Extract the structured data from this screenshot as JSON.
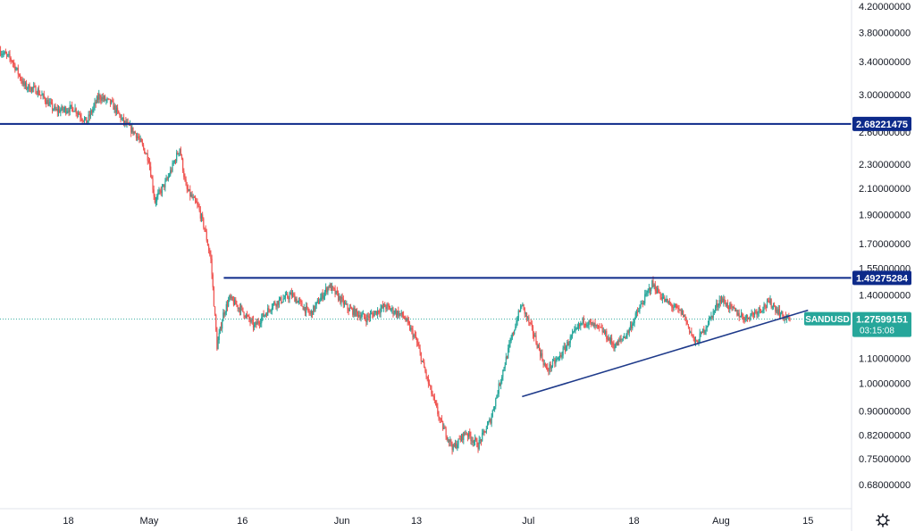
{
  "chart_data": {
    "type": "candlestick",
    "symbol": "SANDUSD",
    "y_scale": "log",
    "ylim": [
      0.62,
      4.3
    ],
    "x_range": [
      "2022-04-07",
      "2022-08-22"
    ],
    "y_ticks": [
      "4.20000000",
      "3.80000000",
      "3.40000000",
      "3.00000000",
      "2.60000000",
      "2.30000000",
      "2.10000000",
      "1.90000000",
      "1.70000000",
      "1.55000000",
      "1.40000000",
      "1.10000000",
      "1.00000000",
      "0.90000000",
      "0.82000000",
      "0.75000000",
      "0.68000000"
    ],
    "x_ticks": [
      {
        "label": "18",
        "date": "2022-04-18"
      },
      {
        "label": "May",
        "date": "2022-05-01"
      },
      {
        "label": "16",
        "date": "2022-05-16"
      },
      {
        "label": "Jun",
        "date": "2022-06-01"
      },
      {
        "label": "13",
        "date": "2022-06-13"
      },
      {
        "label": "Jul",
        "date": "2022-07-01"
      },
      {
        "label": "18",
        "date": "2022-07-18"
      },
      {
        "label": "Aug",
        "date": "2022-08-01"
      },
      {
        "label": "15",
        "date": "2022-08-15"
      }
    ],
    "price_path": [
      [
        "2022-04-07",
        3.55
      ],
      [
        "2022-04-09",
        3.42
      ],
      [
        "2022-04-11",
        3.1
      ],
      [
        "2022-04-13",
        3.05
      ],
      [
        "2022-04-16",
        2.82
      ],
      [
        "2022-04-19",
        2.85
      ],
      [
        "2022-04-21",
        2.7
      ],
      [
        "2022-04-23",
        2.98
      ],
      [
        "2022-04-25",
        2.9
      ],
      [
        "2022-04-27",
        2.7
      ],
      [
        "2022-04-29",
        2.58
      ],
      [
        "2022-05-01",
        2.35
      ],
      [
        "2022-05-02",
        2.0
      ],
      [
        "2022-05-04",
        2.17
      ],
      [
        "2022-05-06",
        2.45
      ],
      [
        "2022-05-07",
        2.1
      ],
      [
        "2022-05-09",
        1.95
      ],
      [
        "2022-05-10",
        1.8
      ],
      [
        "2022-05-11",
        1.6
      ],
      [
        "2022-05-12",
        1.15
      ],
      [
        "2022-05-13",
        1.3
      ],
      [
        "2022-05-14",
        1.38
      ],
      [
        "2022-05-16",
        1.32
      ],
      [
        "2022-05-18",
        1.24
      ],
      [
        "2022-05-21",
        1.35
      ],
      [
        "2022-05-24",
        1.4
      ],
      [
        "2022-05-27",
        1.3
      ],
      [
        "2022-05-30",
        1.45
      ],
      [
        "2022-06-02",
        1.33
      ],
      [
        "2022-06-05",
        1.28
      ],
      [
        "2022-06-08",
        1.34
      ],
      [
        "2022-06-11",
        1.29
      ],
      [
        "2022-06-13",
        1.18
      ],
      [
        "2022-06-15",
        1.0
      ],
      [
        "2022-06-17",
        0.86
      ],
      [
        "2022-06-19",
        0.78
      ],
      [
        "2022-06-21",
        0.83
      ],
      [
        "2022-06-23",
        0.79
      ],
      [
        "2022-06-25",
        0.87
      ],
      [
        "2022-06-27",
        1.05
      ],
      [
        "2022-06-29",
        1.25
      ],
      [
        "2022-06-30",
        1.35
      ],
      [
        "2022-07-02",
        1.2
      ],
      [
        "2022-07-04",
        1.05
      ],
      [
        "2022-07-06",
        1.1
      ],
      [
        "2022-07-08",
        1.19
      ],
      [
        "2022-07-10",
        1.27
      ],
      [
        "2022-07-13",
        1.22
      ],
      [
        "2022-07-15",
        1.15
      ],
      [
        "2022-07-17",
        1.21
      ],
      [
        "2022-07-19",
        1.33
      ],
      [
        "2022-07-21",
        1.46
      ],
      [
        "2022-07-23",
        1.37
      ],
      [
        "2022-07-26",
        1.3
      ],
      [
        "2022-07-28",
        1.16
      ],
      [
        "2022-07-30",
        1.26
      ],
      [
        "2022-08-01",
        1.38
      ],
      [
        "2022-08-03",
        1.32
      ],
      [
        "2022-08-05",
        1.28
      ],
      [
        "2022-08-07",
        1.32
      ],
      [
        "2022-08-09",
        1.36
      ],
      [
        "2022-08-11",
        1.29
      ],
      [
        "2022-08-12",
        1.2759
      ]
    ],
    "horizontal_levels": [
      {
        "price": 2.68221475,
        "label": "2.68221475",
        "start": "2022-04-07",
        "color": "#0d2a8a"
      },
      {
        "price": 1.49275284,
        "label": "1.49275284",
        "start": "2022-05-13",
        "color": "#0d2a8a"
      }
    ],
    "trendline": {
      "from": [
        "2022-06-30",
        0.95
      ],
      "to": [
        "2022-08-15",
        1.32
      ],
      "color": "#1e3a8a"
    },
    "current_price": {
      "symbol": "SANDUSD",
      "value": 1.27599151,
      "label": "1.27599151",
      "countdown": "03:15:08",
      "color": "#26a69a"
    },
    "colors": {
      "up": "#26a69a",
      "down": "#ef5350",
      "axis_bg": "#ffffff",
      "text": "#131722"
    }
  }
}
